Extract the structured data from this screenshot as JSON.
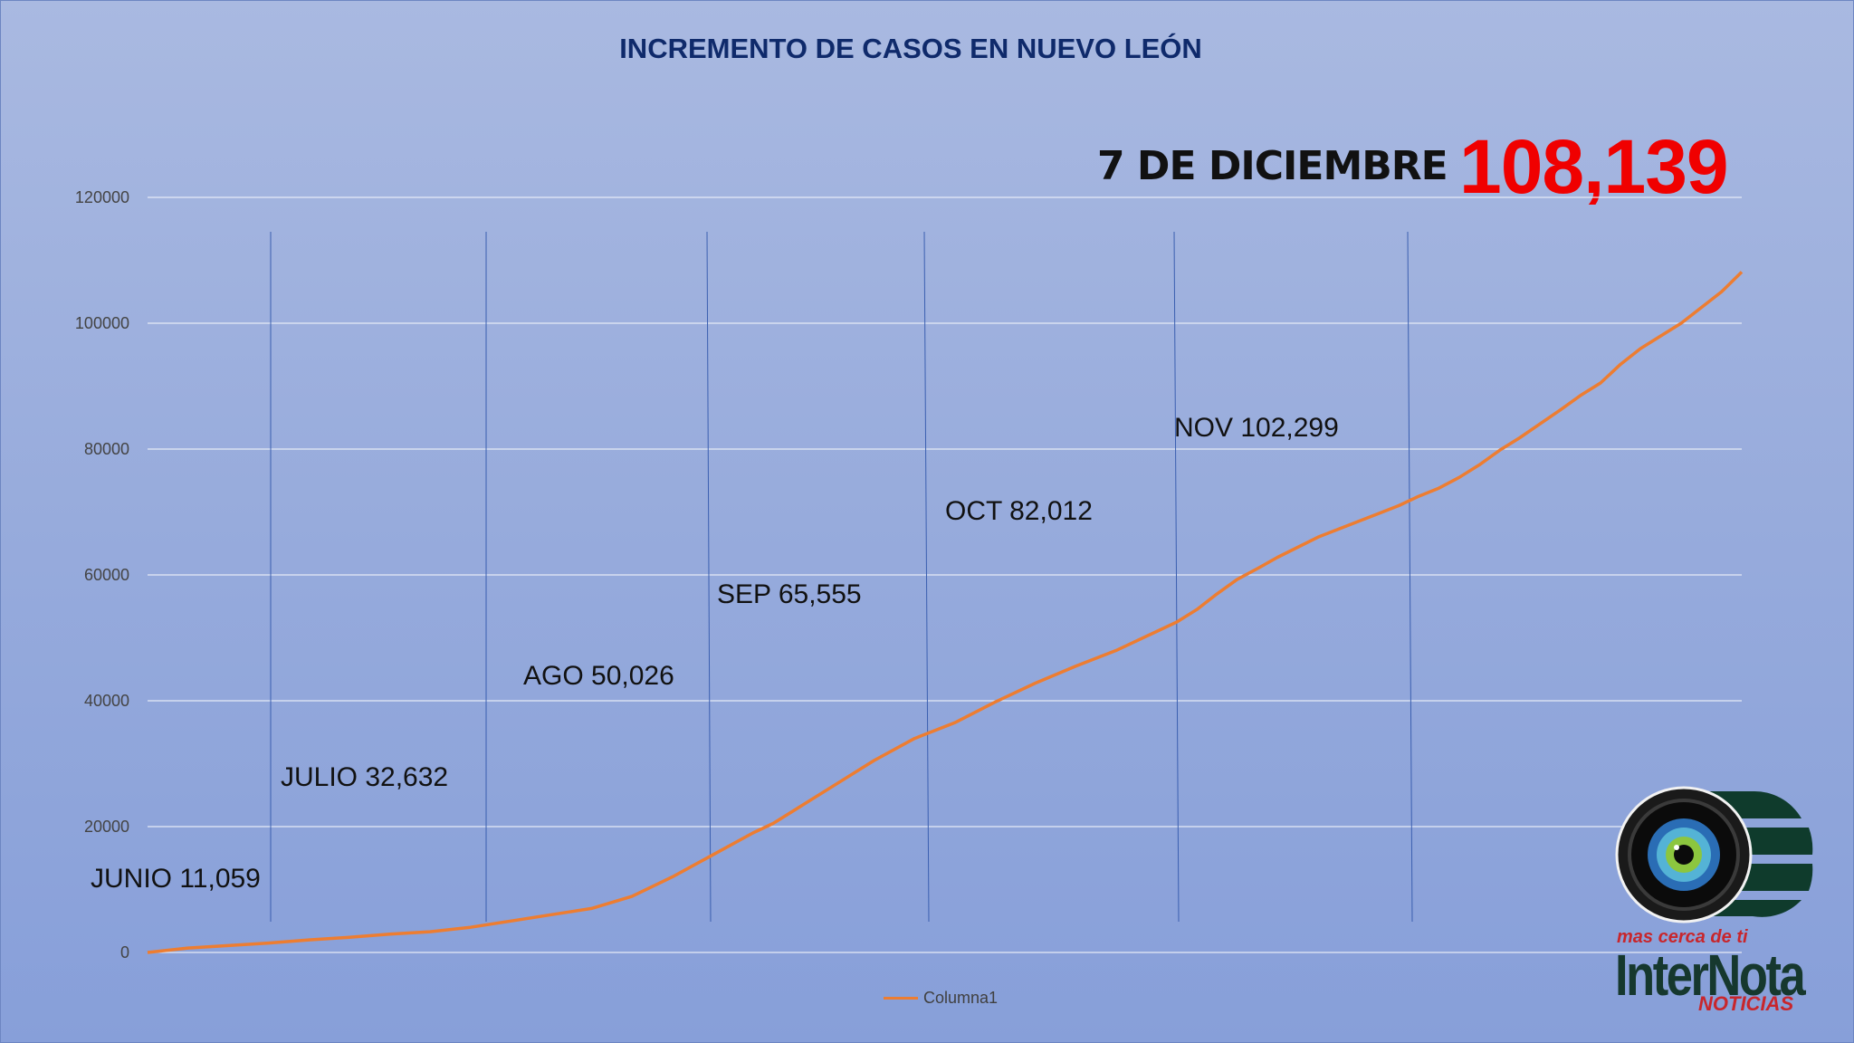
{
  "chart_data": {
    "type": "line",
    "title": "INCREMENTO DE CASOS EN NUEVO LEÓN",
    "highlight": {
      "label": "7 DE DICIEMBRE",
      "value": "108,139"
    },
    "xlabel": "",
    "ylabel": "",
    "ylim": [
      0,
      120000
    ],
    "yticks": [
      "0",
      "20000",
      "40000",
      "60000",
      "80000",
      "100000",
      "120000"
    ],
    "ytick_values": [
      0,
      20000,
      40000,
      60000,
      80000,
      100000,
      120000
    ],
    "grid": true,
    "legend_position": "bottom",
    "months": [
      {
        "label": "JUNIO 11,059",
        "value": 11059
      },
      {
        "label": "JULIO 32,632",
        "value": 32632
      },
      {
        "label": "AGO 50,026",
        "value": 50026
      },
      {
        "label": "SEP 65,555",
        "value": 65555
      },
      {
        "label": "OCT 82,012",
        "value": 82012
      },
      {
        "label": "NOV 102,299",
        "value": 102299
      }
    ],
    "series": [
      {
        "name": "Columna1",
        "color": "#ed7d31",
        "points": [
          [
            0,
            0
          ],
          [
            10,
            700
          ],
          [
            20,
            1100
          ],
          [
            30,
            1500
          ],
          [
            40,
            2000
          ],
          [
            50,
            2400
          ],
          [
            60,
            2900
          ],
          [
            70,
            3300
          ],
          [
            80,
            4000
          ],
          [
            90,
            5000
          ],
          [
            100,
            6000
          ],
          [
            110,
            7000
          ],
          [
            120,
            8900
          ],
          [
            130,
            12000
          ],
          [
            140,
            15500
          ],
          [
            150,
            19000
          ],
          [
            155,
            20500
          ],
          [
            160,
            22500
          ],
          [
            170,
            26500
          ],
          [
            180,
            30500
          ],
          [
            190,
            34000
          ],
          [
            200,
            36500
          ],
          [
            210,
            39800
          ],
          [
            220,
            42800
          ],
          [
            230,
            45500
          ],
          [
            240,
            48000
          ],
          [
            250,
            51000
          ],
          [
            255,
            52500
          ],
          [
            260,
            54500
          ],
          [
            265,
            57000
          ],
          [
            270,
            59300
          ],
          [
            275,
            61000
          ],
          [
            280,
            62800
          ],
          [
            290,
            66000
          ],
          [
            300,
            68500
          ],
          [
            310,
            71000
          ],
          [
            315,
            72500
          ],
          [
            320,
            73800
          ],
          [
            325,
            75500
          ],
          [
            330,
            77500
          ],
          [
            335,
            79800
          ],
          [
            340,
            81800
          ],
          [
            345,
            84000
          ],
          [
            350,
            86200
          ],
          [
            355,
            88500
          ],
          [
            360,
            90500
          ],
          [
            365,
            93500
          ],
          [
            370,
            96000
          ],
          [
            375,
            98000
          ],
          [
            380,
            100000
          ],
          [
            385,
            102500
          ],
          [
            390,
            105000
          ],
          [
            395,
            108139
          ]
        ]
      }
    ]
  },
  "logo": {
    "tagline": "mas cerca de ti",
    "brand": "InterNota",
    "sub": "NOTICIAS"
  },
  "colors": {
    "line": "#ed7d31",
    "highlight": "#f00000",
    "title": "#0f2a6b",
    "month_divider": "#3b5fb0"
  }
}
